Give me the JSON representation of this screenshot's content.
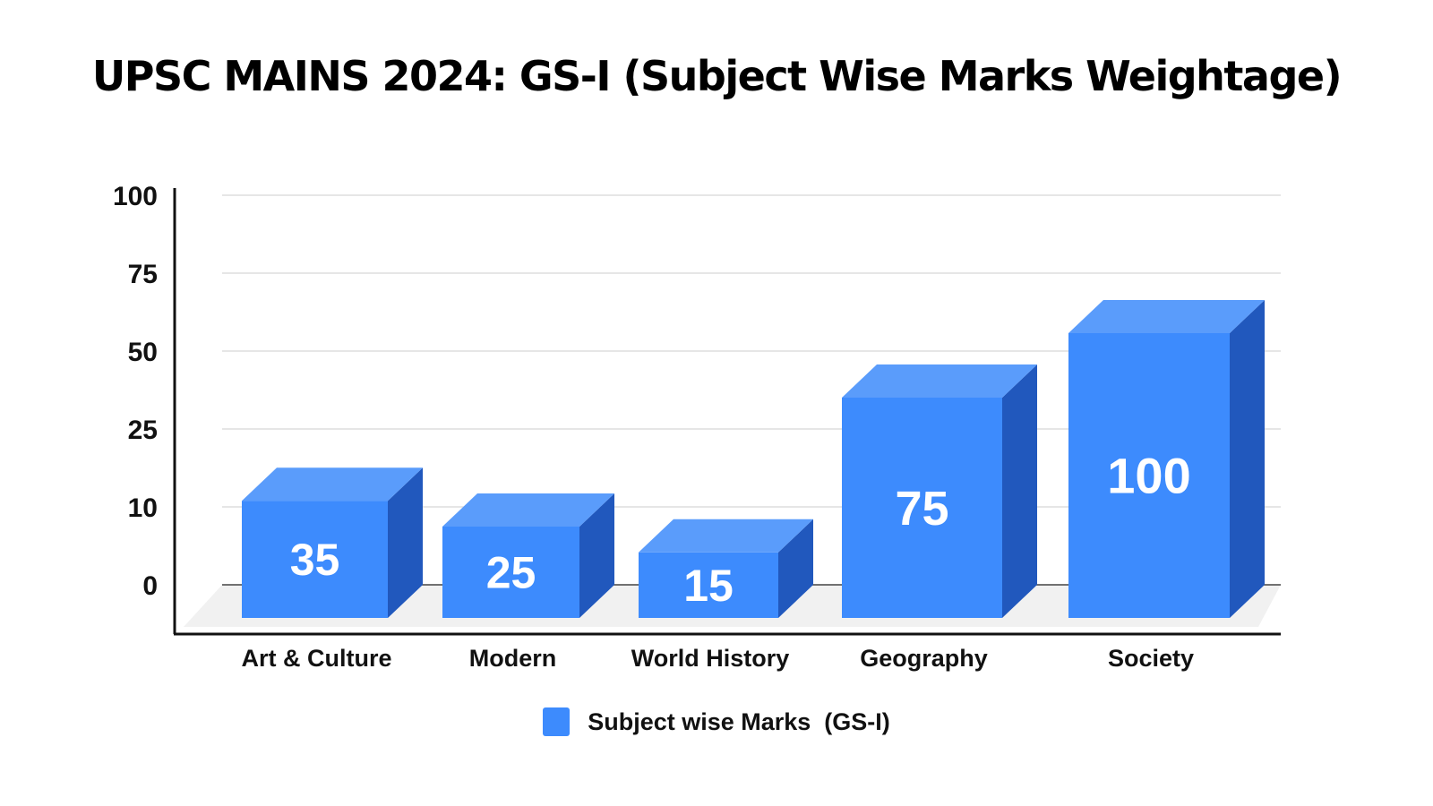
{
  "chart_data": {
    "type": "bar",
    "title": "UPSC MAINS 2024: GS-I (Subject Wise Marks Weightage)",
    "xlabel": "",
    "ylabel": "",
    "categories": [
      "Art & Culture",
      "Modern",
      "World History",
      "Geography",
      "Society"
    ],
    "series": [
      {
        "name": "Subject wise Marks  (GS-I)",
        "values": [
          35,
          25,
          15,
          75,
          100
        ]
      }
    ],
    "y_ticks": [
      "100",
      "75",
      "50",
      "25",
      "10",
      "0"
    ],
    "grid": true,
    "legend_position": "bottom-center",
    "style": "3d-bars",
    "colors": {
      "bar_front": "#3d8bfd",
      "bar_top": "#5a9cfb",
      "bar_side": "#2158bd",
      "gridline": "#d7d7d7",
      "axis": "#111111"
    }
  }
}
